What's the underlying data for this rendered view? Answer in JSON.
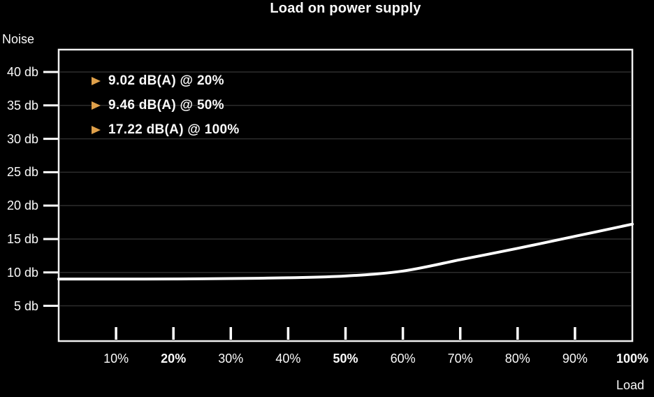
{
  "title": "Load on power supply",
  "y_axis": {
    "title": "Noise"
  },
  "x_axis": {
    "title": "Load"
  },
  "annotations": [
    {
      "text": "9.02 dB(A) @ 20%",
      "load_pct": 20,
      "noise_db": 9.02
    },
    {
      "text": "9.46 dB(A) @ 50%",
      "load_pct": 50,
      "noise_db": 9.46
    },
    {
      "text": "17.22 dB(A) @ 100%",
      "load_pct": 100,
      "noise_db": 17.22
    }
  ],
  "colors": {
    "background": "#000000",
    "text": "#fafafa",
    "curve": "#ffffff",
    "border": "#f0f0f0",
    "grid": "#2d2d2d",
    "axis": "#ffffff",
    "bullet": "#DFA04A"
  },
  "chart_data": {
    "type": "line",
    "title": "Load on power supply",
    "xlabel": "Load",
    "ylabel": "Noise",
    "x_unit": "%",
    "y_unit": "db",
    "x": [
      0,
      10,
      20,
      30,
      40,
      50,
      60,
      70,
      80,
      90,
      100
    ],
    "y": [
      9.0,
      9.0,
      9.02,
      9.08,
      9.2,
      9.46,
      10.2,
      11.9,
      13.6,
      15.4,
      17.22
    ],
    "xlim": [
      0,
      100
    ],
    "ylim": [
      0,
      43.4
    ],
    "y_ticks": [
      5,
      10,
      15,
      20,
      25,
      30,
      35,
      40
    ],
    "x_ticks": [
      {
        "label": "10%",
        "value": 10,
        "bold": false
      },
      {
        "label": "20%",
        "value": 20,
        "bold": true
      },
      {
        "label": "30%",
        "value": 30,
        "bold": false
      },
      {
        "label": "40%",
        "value": 40,
        "bold": false
      },
      {
        "label": "50%",
        "value": 50,
        "bold": true
      },
      {
        "label": "60%",
        "value": 60,
        "bold": false
      },
      {
        "label": "70%",
        "value": 70,
        "bold": false
      },
      {
        "label": "80%",
        "value": 80,
        "bold": false
      },
      {
        "label": "90%",
        "value": 90,
        "bold": false
      },
      {
        "label": "100%",
        "value": 100,
        "bold": true
      }
    ],
    "grid": "horizontal",
    "legend": "none",
    "labeled_points": [
      {
        "x": 20,
        "y": 9.02
      },
      {
        "x": 50,
        "y": 9.46
      },
      {
        "x": 100,
        "y": 17.22
      }
    ]
  }
}
